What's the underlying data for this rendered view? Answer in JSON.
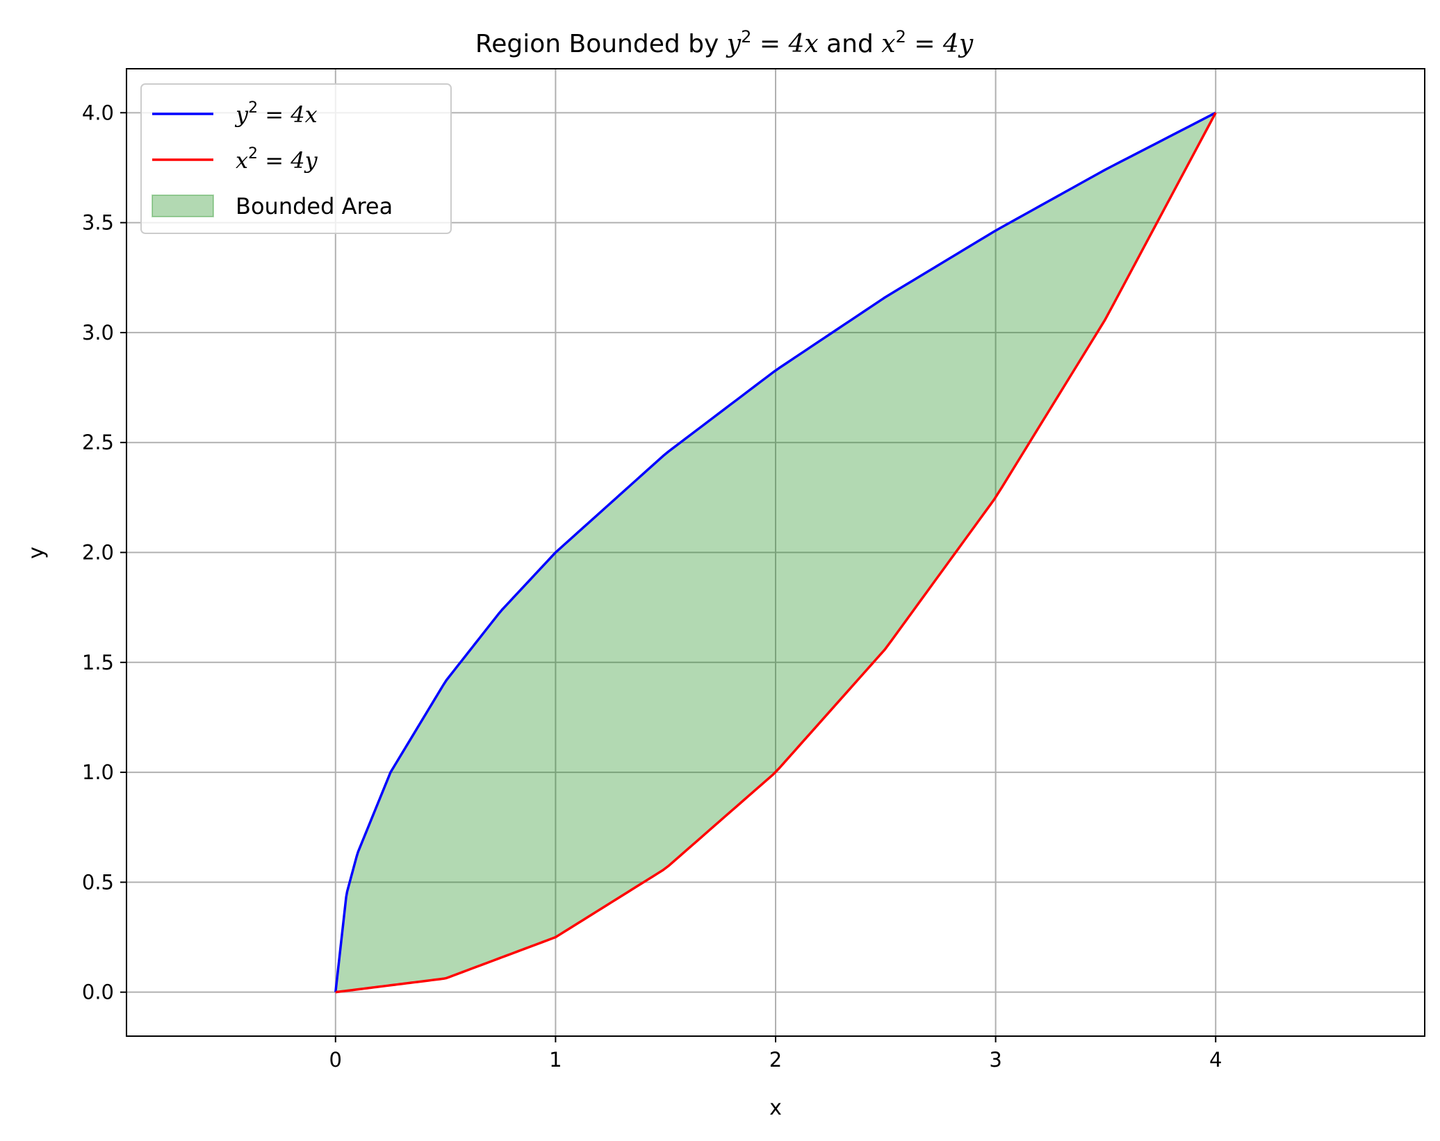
{
  "chart_data": {
    "type": "area",
    "title": {
      "prefix": "Region Bounded by ",
      "eq1_base": "y",
      "eq1_exp": "2",
      "eq1_rhs": " = 4x",
      "middle": " and ",
      "eq2_base": "x",
      "eq2_exp": "2",
      "eq2_rhs": " = 4y"
    },
    "xlabel": "x",
    "ylabel": "y",
    "xlim": [
      -0.95,
      4.95
    ],
    "ylim": [
      -0.2,
      4.2
    ],
    "xticks": [
      0,
      1,
      2,
      3,
      4
    ],
    "xtick_labels": [
      "0",
      "1",
      "2",
      "3",
      "4"
    ],
    "yticks": [
      0.0,
      0.5,
      1.0,
      1.5,
      2.0,
      2.5,
      3.0,
      3.5,
      4.0
    ],
    "ytick_labels": [
      "0.0",
      "0.5",
      "1.0",
      "1.5",
      "2.0",
      "2.5",
      "3.0",
      "3.5",
      "4.0"
    ],
    "grid": true,
    "legend_position": "upper-left",
    "series": [
      {
        "name": "y^2 = 4x",
        "legend": {
          "base": "y",
          "exp": "2",
          "rhs": " = 4x"
        },
        "color": "#0000ff",
        "x": [
          0,
          0.05,
          0.1,
          0.25,
          0.5,
          0.75,
          1,
          1.5,
          2,
          2.5,
          3,
          3.5,
          4
        ],
        "y": [
          0,
          0.447,
          0.632,
          1.0,
          1.414,
          1.732,
          2.0,
          2.449,
          2.828,
          3.162,
          3.464,
          3.742,
          4.0
        ]
      },
      {
        "name": "x^2 = 4y",
        "legend": {
          "base": "x",
          "exp": "2",
          "rhs": " = 4y"
        },
        "color": "#ff0000",
        "x": [
          0,
          0.5,
          1,
          1.5,
          2,
          2.5,
          3,
          3.5,
          4
        ],
        "y": [
          0,
          0.0625,
          0.25,
          0.5625,
          1.0,
          1.5625,
          2.25,
          3.0625,
          4.0
        ]
      }
    ],
    "fill": {
      "name": "Bounded Area",
      "color": "#008000",
      "opacity": 0.3,
      "between": [
        "y^2 = 4x",
        "x^2 = 4y"
      ],
      "x_range": [
        0,
        4
      ]
    }
  }
}
